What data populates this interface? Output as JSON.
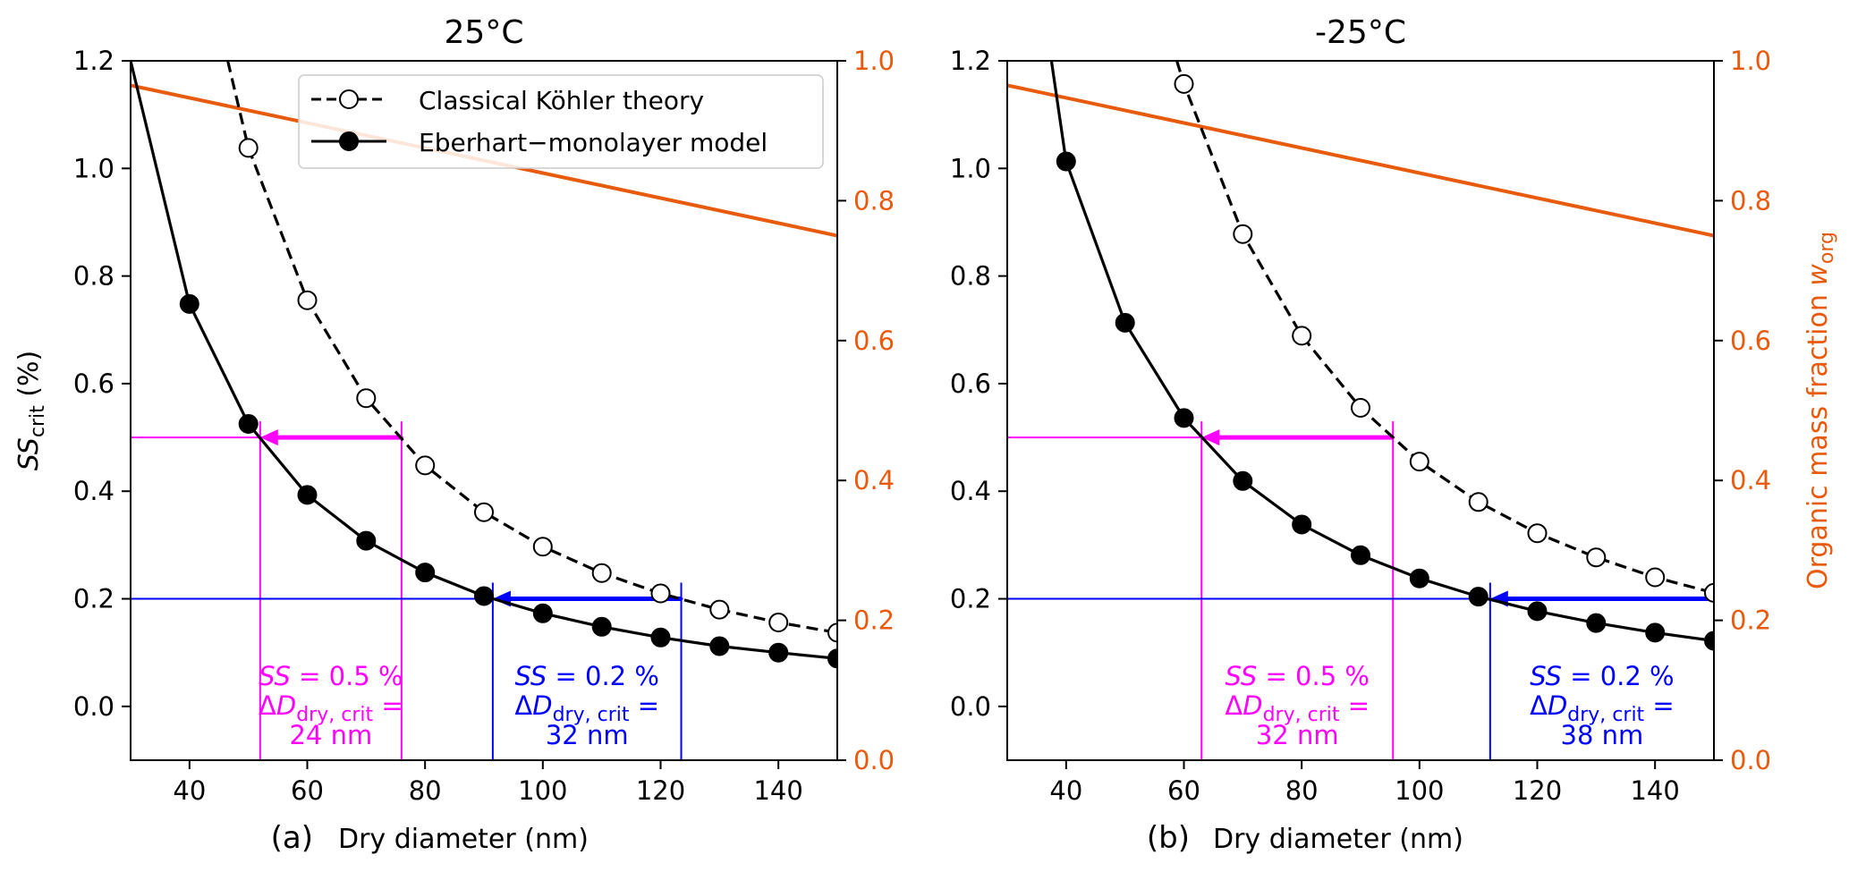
{
  "chart_data": [
    {
      "type": "line",
      "title": "25°C",
      "panel_label": "(a)",
      "xlabel": "Dry diameter (nm)",
      "ylabel_main": "SS",
      "ylabel_sub": "crit",
      "ylabel_unit": " (%)",
      "xlim": [
        30,
        150
      ],
      "ylim": [
        -0.1,
        1.2
      ],
      "y2lim": [
        0.0,
        1.0
      ],
      "xticks": [
        "40",
        "60",
        "80",
        "100",
        "120",
        "140"
      ],
      "yticks": [
        "0.0",
        "0.2",
        "0.4",
        "0.6",
        "0.8",
        "1.0",
        "1.2"
      ],
      "y2ticks": [
        "0.0",
        "0.2",
        "0.4",
        "0.6",
        "0.8",
        "1.0"
      ],
      "legend": {
        "placement": "top-right",
        "entries": [
          "Classical Köhler theory",
          "Eberhart−monolayer model"
        ]
      },
      "series": [
        {
          "name": "Classical Köhler theory",
          "color": "#000000",
          "style": "dashed-open-circle",
          "x": [
            46.5,
            50,
            60,
            70,
            80,
            90,
            100,
            110,
            120,
            130,
            140,
            150
          ],
          "y": [
            1.2,
            1.038,
            0.755,
            0.573,
            0.448,
            0.361,
            0.297,
            0.248,
            0.21,
            0.18,
            0.156,
            0.137
          ],
          "markers": [
            false,
            true,
            true,
            true,
            true,
            true,
            true,
            true,
            true,
            true,
            true,
            true
          ]
        },
        {
          "name": "Eberhart−monolayer model",
          "color": "#000000",
          "style": "solid-filled-circle",
          "x": [
            30,
            40,
            50,
            60,
            70,
            80,
            90,
            100,
            110,
            120,
            130,
            140,
            150
          ],
          "y": [
            1.2,
            0.748,
            0.525,
            0.393,
            0.308,
            0.249,
            0.205,
            0.173,
            0.148,
            0.128,
            0.112,
            0.1,
            0.089
          ],
          "markers": [
            false,
            true,
            true,
            true,
            true,
            true,
            true,
            true,
            true,
            true,
            true,
            true,
            true
          ]
        },
        {
          "axis": "right",
          "color": "#e85a0c",
          "x": [
            30,
            150
          ],
          "y": [
            0.965,
            0.75
          ]
        }
      ],
      "annotations": [
        {
          "color": "#ff00ff",
          "ss": 0.5,
          "x_from": 76,
          "x_to": 52,
          "label_ss": "SS",
          "label_ss_value": " = 0.5 %",
          "label_delta": "ΔD",
          "label_delta_sub": "dry, crit",
          "label_delta_eq": " =",
          "label_value": "24 nm"
        },
        {
          "color": "#0000ff",
          "ss": 0.2,
          "x_from": 123.5,
          "x_to": 91.5,
          "label_ss": "SS",
          "label_ss_value": " = 0.2 %",
          "label_delta": "ΔD",
          "label_delta_sub": "dry, crit",
          "label_delta_eq": " =",
          "label_value": "32 nm"
        }
      ]
    },
    {
      "type": "line",
      "title": "-25°C",
      "panel_label": "(b)",
      "xlabel": "Dry diameter (nm)",
      "y2label_main": "Organic mass fraction ",
      "y2label_italic": "w",
      "y2label_sub": "org",
      "xlim": [
        30,
        150
      ],
      "ylim": [
        -0.1,
        1.2
      ],
      "y2lim": [
        0.0,
        1.0
      ],
      "xticks": [
        "40",
        "60",
        "80",
        "100",
        "120",
        "140"
      ],
      "yticks": [
        "0.0",
        "0.2",
        "0.4",
        "0.6",
        "0.8",
        "1.0",
        "1.2"
      ],
      "y2ticks": [
        "0.0",
        "0.2",
        "0.4",
        "0.6",
        "0.8",
        "1.0"
      ],
      "series": [
        {
          "name": "Classical Köhler theory",
          "color": "#000000",
          "style": "dashed-open-circle",
          "x": [
            58.8,
            60,
            70,
            80,
            90,
            100,
            110,
            120,
            130,
            140,
            150
          ],
          "y": [
            1.2,
            1.157,
            0.878,
            0.689,
            0.555,
            0.455,
            0.38,
            0.322,
            0.277,
            0.24,
            0.211
          ],
          "markers": [
            false,
            true,
            true,
            true,
            true,
            true,
            true,
            true,
            true,
            true,
            true
          ]
        },
        {
          "name": "Eberhart−monolayer model",
          "color": "#000000",
          "style": "solid-filled-circle",
          "x": [
            37.5,
            40,
            50,
            60,
            70,
            80,
            90,
            100,
            110,
            120,
            130,
            140,
            150
          ],
          "y": [
            1.2,
            1.013,
            0.713,
            0.536,
            0.419,
            0.338,
            0.281,
            0.238,
            0.204,
            0.177,
            0.155,
            0.137,
            0.122
          ],
          "markers": [
            false,
            true,
            true,
            true,
            true,
            true,
            true,
            true,
            true,
            true,
            true,
            true,
            true
          ]
        },
        {
          "axis": "right",
          "color": "#e85a0c",
          "x": [
            30,
            150
          ],
          "y": [
            0.965,
            0.75
          ]
        }
      ],
      "annotations": [
        {
          "color": "#ff00ff",
          "ss": 0.5,
          "x_from": 95.5,
          "x_to": 63,
          "label_ss": "SS",
          "label_ss_value": " = 0.5 %",
          "label_delta": "ΔD",
          "label_delta_sub": "dry, crit",
          "label_delta_eq": " =",
          "label_value": "32 nm"
        },
        {
          "color": "#0000ff",
          "ss": 0.2,
          "x_from": 150,
          "x_to": 112,
          "label_ss": "SS",
          "label_ss_value": " = 0.2 %",
          "label_delta": "ΔD",
          "label_delta_sub": "dry, crit",
          "label_delta_eq": " =",
          "label_value": "38 nm"
        }
      ]
    }
  ]
}
